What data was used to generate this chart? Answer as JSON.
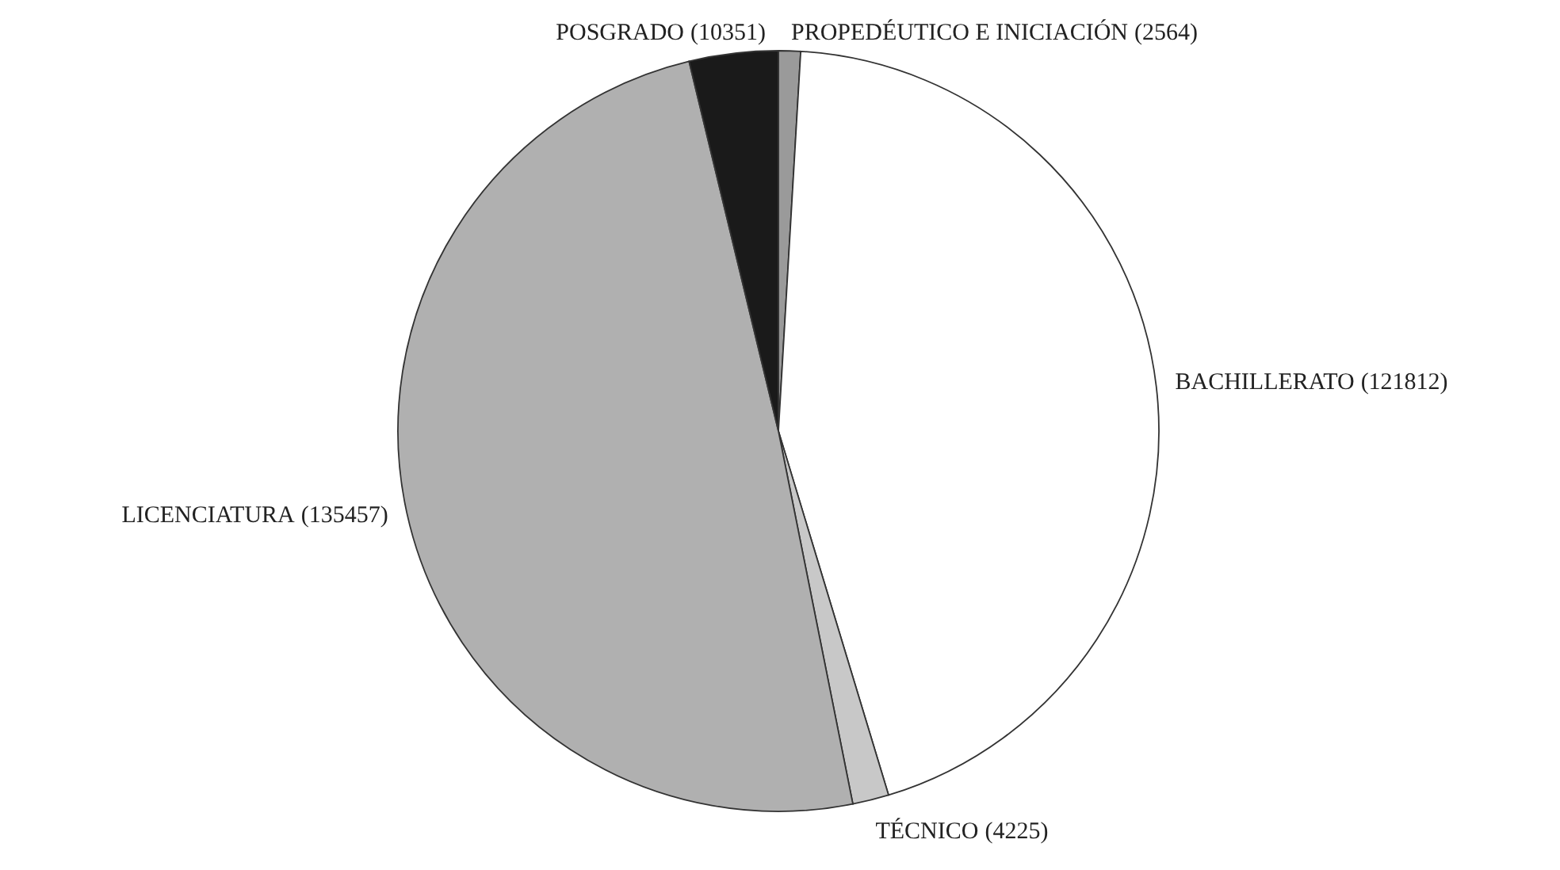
{
  "chart_data": {
    "type": "pie",
    "categories": [
      "PROPEDÉUTICO E INICIACIÓN",
      "BACHILLERATO",
      "TÉCNICO",
      "LICENCIATURA",
      "POSGRADO"
    ],
    "values": [
      2564,
      121812,
      4225,
      135457,
      10351
    ],
    "colors": [
      "#9a9a9a",
      "#ffffff",
      "#c8c8c8",
      "#b0b0b0",
      "#1a1a1a"
    ],
    "value_labels": [
      "(2564)",
      "(121812)",
      "(4225)",
      "(135457)",
      "(10351)"
    ]
  }
}
